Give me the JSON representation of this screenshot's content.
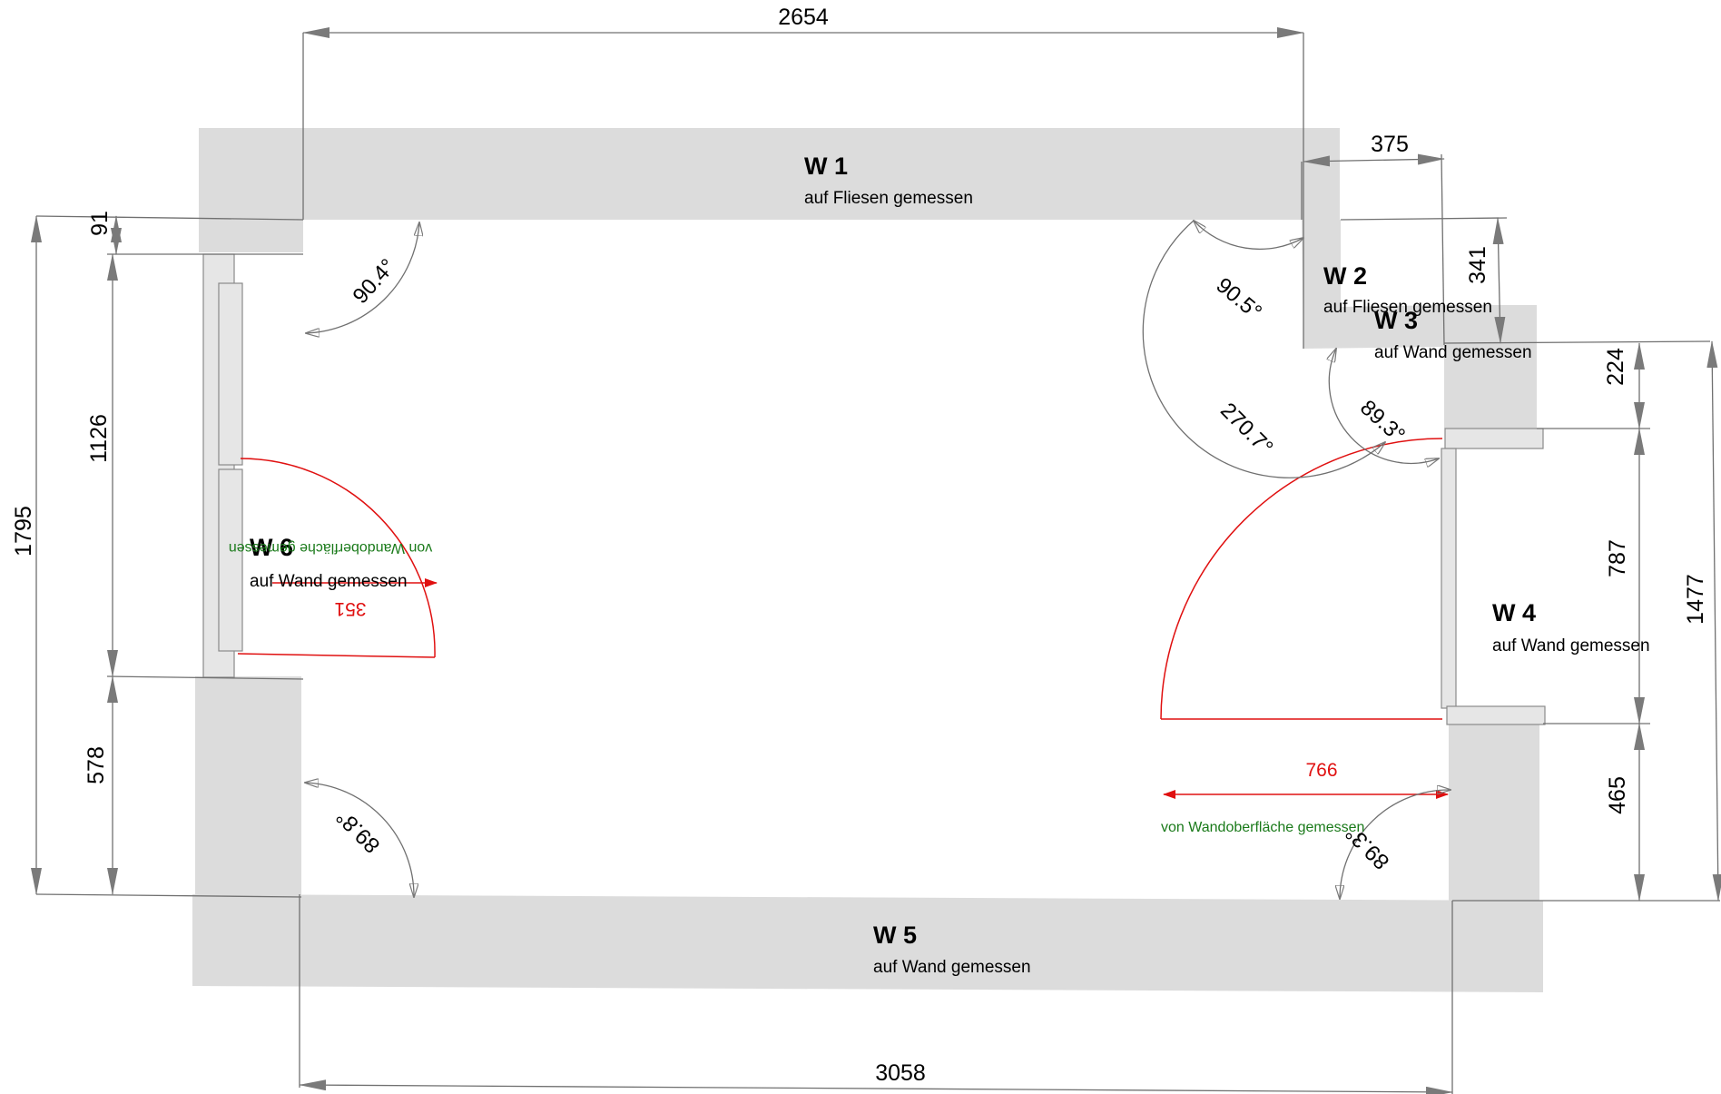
{
  "walls": [
    {
      "id": "w1",
      "label": "W 1",
      "sub": "auf Fliesen gemessen"
    },
    {
      "id": "w2",
      "label": "W 2",
      "sub": "auf Fliesen gemessen"
    },
    {
      "id": "w3",
      "label": "W 3",
      "sub": "auf Wand gemessen"
    },
    {
      "id": "w4",
      "label": "W 4",
      "sub": "auf Wand gemessen"
    },
    {
      "id": "w5",
      "label": "W 5",
      "sub": "auf Wand gemessen"
    },
    {
      "id": "w6",
      "label": "W 6",
      "sub": "auf Wand gemessen"
    }
  ],
  "dimensions": {
    "top_width": "2654",
    "bottom_width": "3058",
    "w2_width": "375",
    "w2_depth": "341",
    "left_total": "1795",
    "left_top": "91",
    "left_window": "1126",
    "left_bottom": "578",
    "right_total": "1477",
    "right_top": "224",
    "right_window": "787",
    "right_bottom": "465"
  },
  "angles": {
    "top_left": "90.4°",
    "w1_w2": "90.5°",
    "w2_reflex": "270.7°",
    "w3_w4": "89.3°",
    "bottom_left": "89.8°",
    "bottom_right": "89.3°"
  },
  "doors": {
    "left_value": "351",
    "left_note": "von Wandoberfläche gemessen",
    "right_value": "766",
    "right_note": "von Wandoberfläche gemessen"
  },
  "colors": {
    "wall": "#dcdcdc",
    "door": "#e01010",
    "note": "#1a7a1a",
    "dimension": "#707070"
  }
}
